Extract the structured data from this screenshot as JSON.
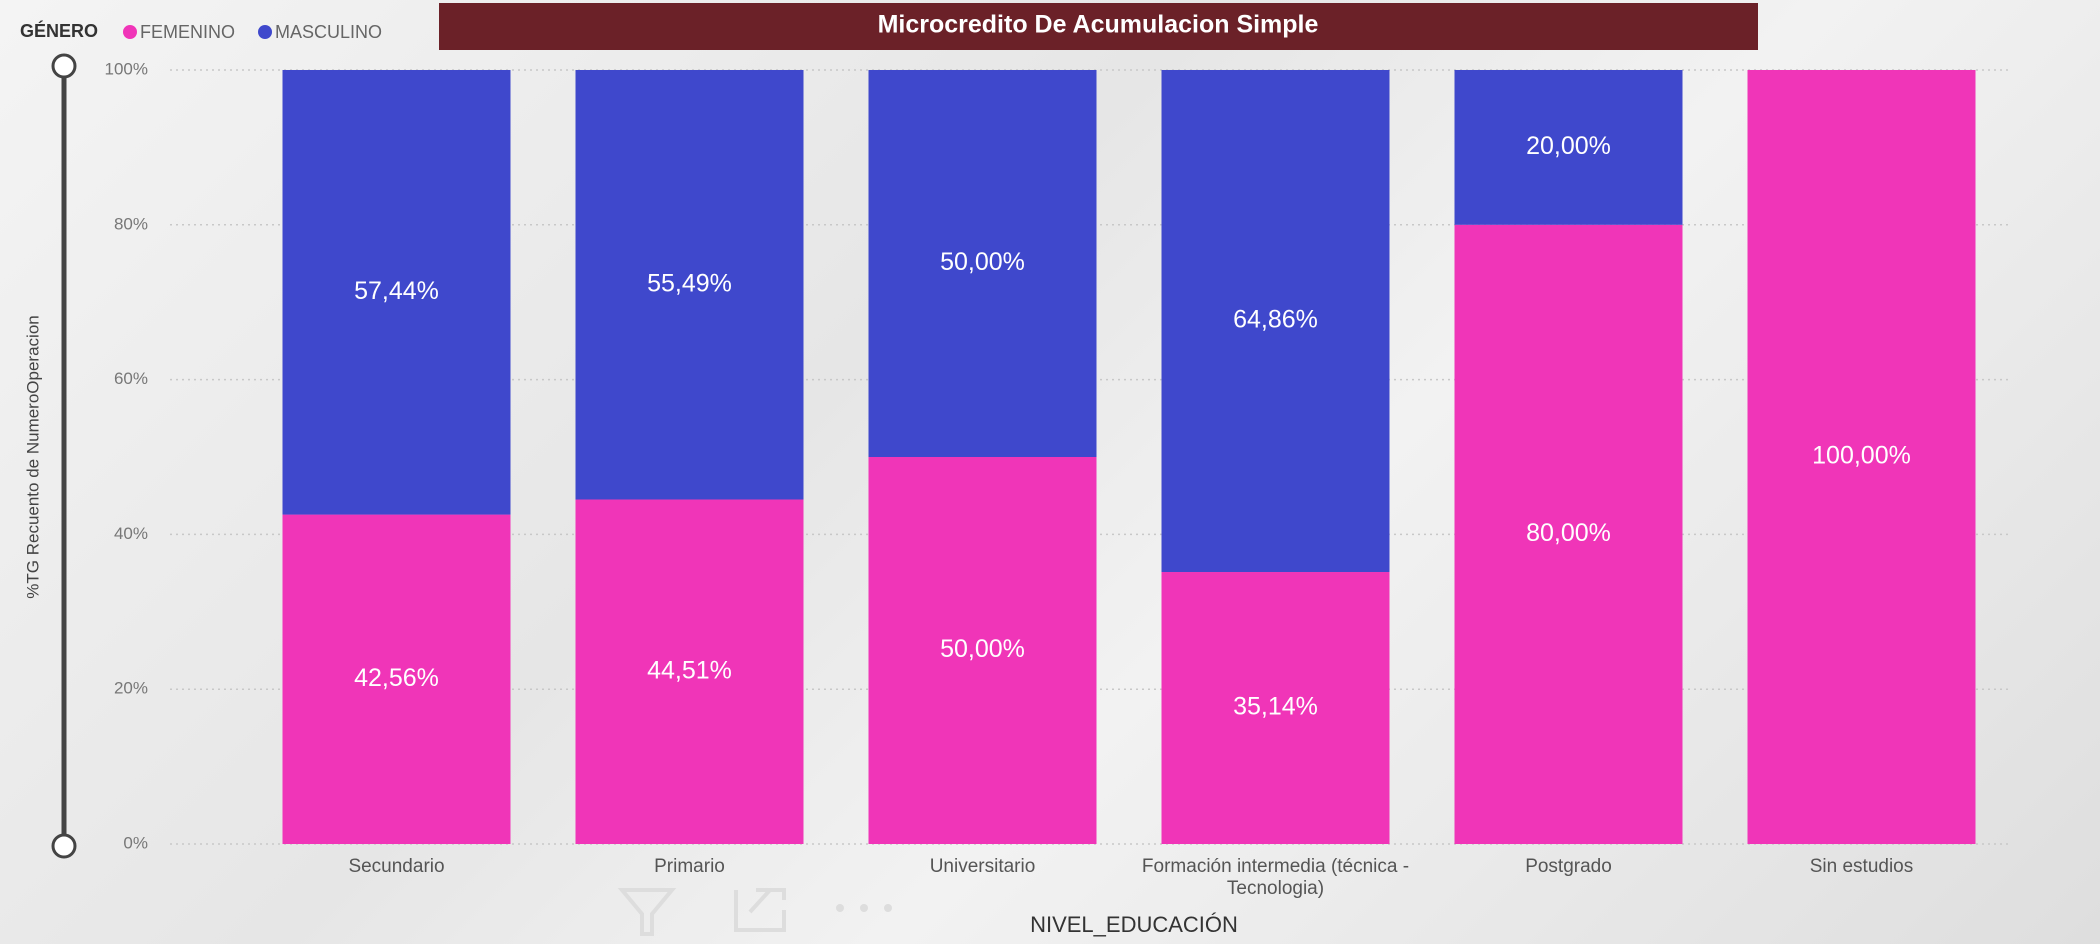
{
  "chart_data": {
    "type": "stacked_bar",
    "title": "Microcredito De Acumulacion Simple",
    "legend_title": "GÉNERO",
    "y_label": "%TG Recuento de NumeroOperacion",
    "x_label": "NIVEL_EDUCACIÓN",
    "categories": [
      "Secundario",
      "Primario",
      "Universitario",
      "Formación intermedia (técnica - Tecnologia)",
      "Postgrado",
      "Sin estudios"
    ],
    "series": [
      {
        "name": "FEMENINO",
        "color": "#f035b8",
        "values": [
          42.56,
          44.51,
          50,
          35.14,
          80,
          100
        ],
        "value_labels": [
          "42,56%",
          "44,51%",
          "50,00%",
          "35,14%",
          "80,00%",
          "100,00%"
        ]
      },
      {
        "name": "MASCULINO",
        "color": "#3f48cc",
        "values": [
          57.44,
          55.49,
          50,
          64.86,
          20,
          0
        ],
        "value_labels": [
          "57,44%",
          "55,49%",
          "50,00%",
          "64,86%",
          "20,00%",
          null
        ]
      }
    ],
    "ylim": [
      0,
      100
    ],
    "yticks": [
      {
        "value": 0,
        "label": "0%"
      },
      {
        "value": 20,
        "label": "20%"
      },
      {
        "value": 40,
        "label": "40%"
      },
      {
        "value": 60,
        "label": "60%"
      },
      {
        "value": 80,
        "label": "80%"
      },
      {
        "value": 100,
        "label": "100%"
      }
    ],
    "grid": true,
    "legend": "top-left"
  }
}
